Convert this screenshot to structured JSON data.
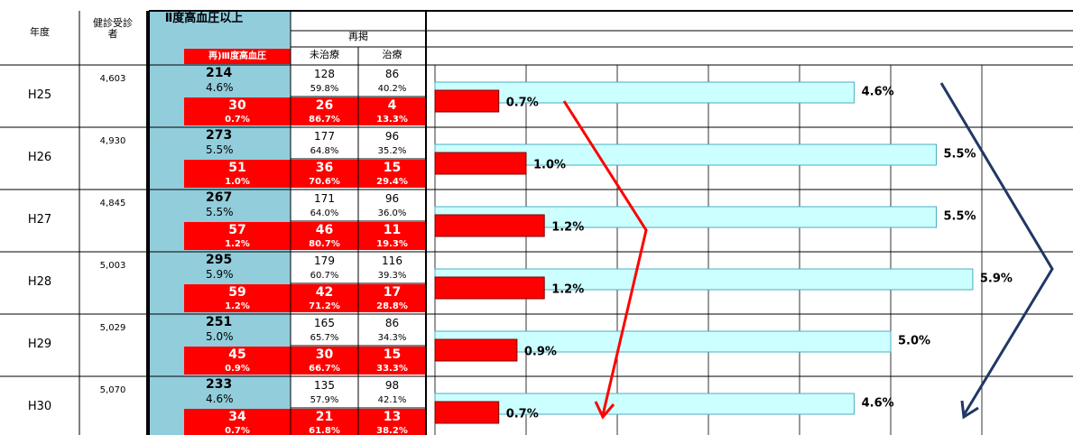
{
  "table": {
    "headers": {
      "year": "年度",
      "examinees": "健診受診者",
      "g2": "Ⅱ度高血圧以上",
      "resummary": "再掲",
      "g3": "再)Ⅲ度高血圧",
      "untreated": "未治療",
      "treated": "治療"
    },
    "rows": [
      {
        "year": "H25",
        "examinees": "4,603",
        "g2": {
          "n": 214,
          "p": "4.6%"
        },
        "g2u": {
          "n": 128,
          "p": "59.8%"
        },
        "g2t": {
          "n": 86,
          "p": "40.2%"
        },
        "g3": {
          "n": 30,
          "p": "0.7%"
        },
        "g3u": {
          "n": 26,
          "p": "86.7%"
        },
        "g3t": {
          "n": 4,
          "p": "13.3%"
        }
      },
      {
        "year": "H26",
        "examinees": "4,930",
        "g2": {
          "n": 273,
          "p": "5.5%"
        },
        "g2u": {
          "n": 177,
          "p": "64.8%"
        },
        "g2t": {
          "n": 96,
          "p": "35.2%"
        },
        "g3": {
          "n": 51,
          "p": "1.0%"
        },
        "g3u": {
          "n": 36,
          "p": "70.6%"
        },
        "g3t": {
          "n": 15,
          "p": "29.4%"
        }
      },
      {
        "year": "H27",
        "examinees": "4,845",
        "g2": {
          "n": 267,
          "p": "5.5%"
        },
        "g2u": {
          "n": 171,
          "p": "64.0%"
        },
        "g2t": {
          "n": 96,
          "p": "36.0%"
        },
        "g3": {
          "n": 57,
          "p": "1.2%"
        },
        "g3u": {
          "n": 46,
          "p": "80.7%"
        },
        "g3t": {
          "n": 11,
          "p": "19.3%"
        }
      },
      {
        "year": "H28",
        "examinees": "5,003",
        "g2": {
          "n": 295,
          "p": "5.9%"
        },
        "g2u": {
          "n": 179,
          "p": "60.7%"
        },
        "g2t": {
          "n": 116,
          "p": "39.3%"
        },
        "g3": {
          "n": 59,
          "p": "1.2%"
        },
        "g3u": {
          "n": 42,
          "p": "71.2%"
        },
        "g3t": {
          "n": 17,
          "p": "28.8%"
        }
      },
      {
        "year": "H29",
        "examinees": "5,029",
        "g2": {
          "n": 251,
          "p": "5.0%"
        },
        "g2u": {
          "n": 165,
          "p": "65.7%"
        },
        "g2t": {
          "n": 86,
          "p": "34.3%"
        },
        "g3": {
          "n": 45,
          "p": "0.9%"
        },
        "g3u": {
          "n": 30,
          "p": "66.7%"
        },
        "g3t": {
          "n": 15,
          "p": "33.3%"
        }
      },
      {
        "year": "H30",
        "examinees": "5,070",
        "g2": {
          "n": 233,
          "p": "4.6%"
        },
        "g2u": {
          "n": 135,
          "p": "57.9%"
        },
        "g2t": {
          "n": 98,
          "p": "42.1%"
        },
        "g3": {
          "n": 34,
          "p": "0.7%"
        },
        "g3u": {
          "n": 21,
          "p": "61.8%"
        },
        "g3t": {
          "n": 13,
          "p": "38.2%"
        }
      }
    ]
  },
  "chart_data": {
    "type": "bar",
    "orientation": "horizontal",
    "xlim": [
      0,
      7
    ],
    "xticks": [
      0,
      1,
      2,
      3,
      4,
      5,
      6
    ],
    "grid": true,
    "series": [
      {
        "color": "#ccffff",
        "values": [
          4.6,
          5.5,
          5.5,
          5.9,
          5.0,
          4.6
        ],
        "value_labels": [
          "4.6%",
          "5.5%",
          "5.5%",
          "5.9%",
          "5.0%",
          "4.6%"
        ]
      },
      {
        "color": "#ff0000",
        "values": [
          0.7,
          1.0,
          1.2,
          1.2,
          0.9,
          0.7
        ],
        "value_labels": [
          "0.7%",
          "1.0%",
          "1.2%",
          "1.2%",
          "0.9%",
          "0.7%"
        ]
      }
    ]
  }
}
